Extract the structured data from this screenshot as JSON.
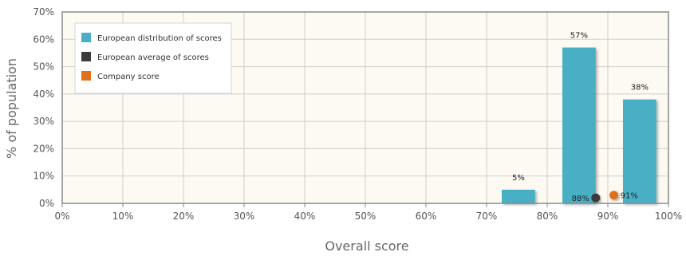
{
  "chart_data": {
    "type": "bar",
    "xlabel": "Overall score",
    "ylabel": "% of population",
    "xlim": [
      0,
      100
    ],
    "ylim": [
      0,
      70
    ],
    "x_ticks": [
      "0%",
      "10%",
      "20%",
      "30%",
      "40%",
      "50%",
      "60%",
      "70%",
      "80%",
      "90%",
      "100%"
    ],
    "y_ticks": [
      "0%",
      "10%",
      "20%",
      "30%",
      "40%",
      "50%",
      "60%",
      "70%"
    ],
    "grid": true,
    "legend_position": "top-left",
    "series": [
      {
        "name": "European distribution of scores",
        "kind": "bar",
        "color": "#4aafc5",
        "bars": [
          {
            "x_from": 72.5,
            "x_to": 78,
            "value": 5,
            "label": "5%"
          },
          {
            "x_from": 82.5,
            "x_to": 88,
            "value": 57,
            "label": "57%"
          },
          {
            "x_from": 92.5,
            "x_to": 98,
            "value": 38,
            "label": "38%"
          }
        ]
      },
      {
        "name": "European average of scores",
        "kind": "point",
        "color": "#3a3a3a",
        "x": 88,
        "y": 2,
        "label": "88%"
      },
      {
        "name": "Company score",
        "kind": "point",
        "color": "#e0701e",
        "x": 91,
        "y": 3,
        "label": "91%"
      }
    ],
    "colors": {
      "plot_background": "#fdfaf2",
      "grid": "#cfcfcf",
      "frame": "#8a8a8a"
    }
  }
}
